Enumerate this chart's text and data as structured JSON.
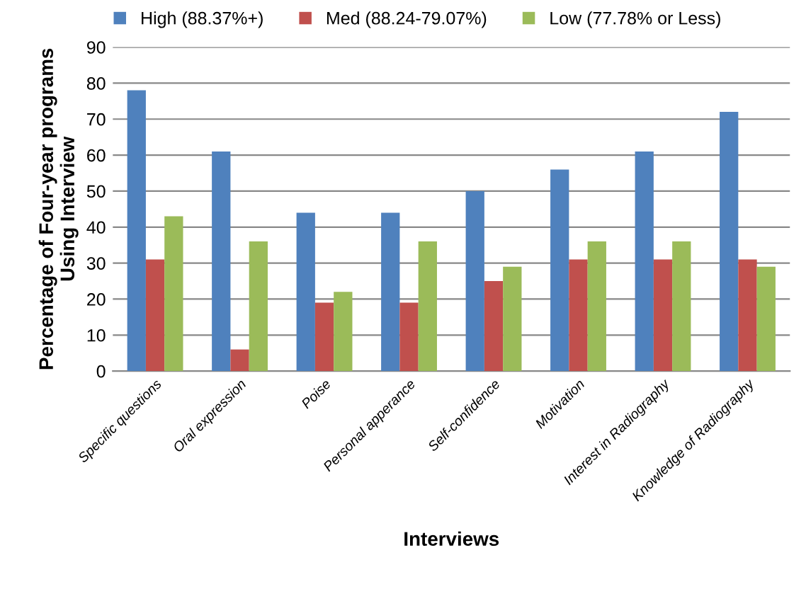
{
  "chart_data": {
    "type": "bar",
    "xlabel": "Interviews",
    "ylabel": "Percentage of Four-year programs\nUsing Interview",
    "categories": [
      "Specific questions",
      "Oral expression",
      "Poise",
      "Personal apperance",
      "Self-confidence",
      "Motivation",
      "Interest in Radiography",
      "Knowledge of Radiography"
    ],
    "series": [
      {
        "name": "High (88.37%+)",
        "color": "#4f81bd",
        "values": [
          78,
          61,
          44,
          44,
          50,
          56,
          61,
          72
        ]
      },
      {
        "name": "Med (88.24-79.07%)",
        "color": "#c0504d",
        "values": [
          31,
          6,
          19,
          19,
          25,
          31,
          31,
          31
        ]
      },
      {
        "name": "Low (77.78% or Less)",
        "color": "#9bbb59",
        "values": [
          43,
          36,
          22,
          36,
          29,
          36,
          36,
          29
        ]
      }
    ],
    "ylim": [
      0,
      90
    ],
    "yticks": [
      0,
      10,
      20,
      30,
      40,
      50,
      60,
      70,
      80,
      90
    ],
    "grid": "y",
    "legend": "top"
  }
}
